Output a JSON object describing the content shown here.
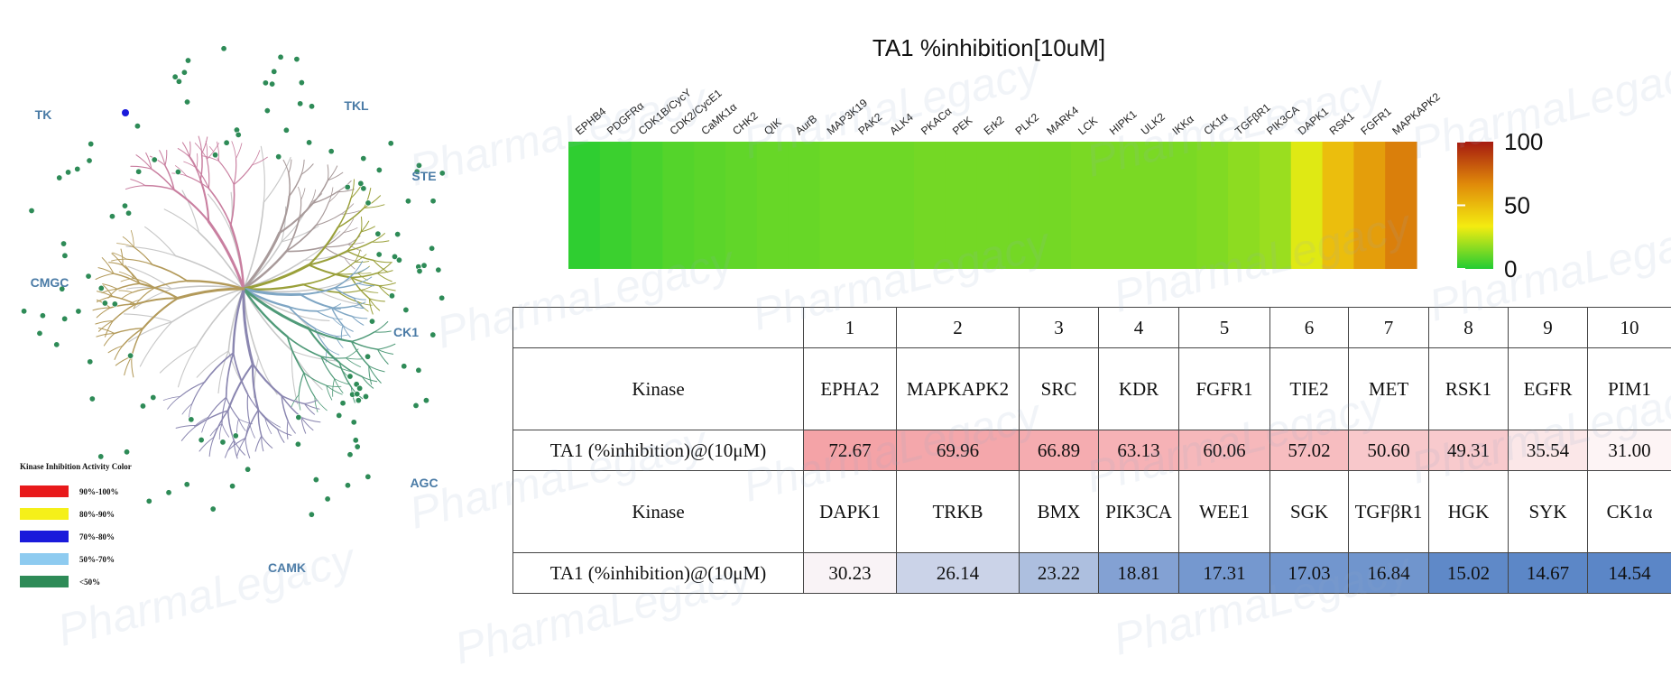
{
  "title": "TA1 %inhibition[10uM]",
  "watermark_text": "PharmaLegacy",
  "tree": {
    "groups": [
      "TK",
      "TKL",
      "STE",
      "CK1",
      "AGC",
      "CAMK",
      "CMGC"
    ],
    "legend_title": "Kinase Inhibition Activity Color",
    "legend": [
      {
        "label": "90%-100%",
        "color": "#e8191b"
      },
      {
        "label": "80%-90%",
        "color": "#f5f019"
      },
      {
        "label": "70%-80%",
        "color": "#1a1adb"
      },
      {
        "label": "50%-70%",
        "color": "#8ecbf0"
      },
      {
        "label": "<50%",
        "color": "#2e8b57"
      }
    ],
    "branch_colors": {
      "TK": "#c97fa0",
      "TKL": "#a89a9a",
      "STE": "#9aa03a",
      "CK1": "#7fa6c4",
      "AGC": "#4f9a78",
      "CAMK": "#8a86b0",
      "CMGC": "#b39a5a",
      "core": "#c8c8c8"
    }
  },
  "chart_data": {
    "type": "heatmap",
    "title": "TA1 %inhibition[10uM]",
    "x_labels": [
      "EPHB4",
      "PDGFRα",
      "CDK1B/CycY",
      "CDK2/CycE1",
      "CaMK1α",
      "CHK2",
      "QIK",
      "AurB",
      "MAP3K19",
      "PAK2",
      "ALK4",
      "PKACα",
      "PEK",
      "Erk2",
      "PLK2",
      "MARK4",
      "LCK",
      "HIPK1",
      "ULK2",
      "IKKα",
      "CK1α",
      "TGFβR1",
      "PIK3CA",
      "DAPK1",
      "RSK1",
      "FGFR1",
      "MAPKAPK2"
    ],
    "values": [
      2,
      4,
      6,
      8,
      9,
      10,
      11,
      11,
      12,
      12,
      12,
      13,
      13,
      13,
      13,
      13,
      14,
      14,
      14,
      14,
      15,
      17,
      19,
      30,
      49,
      60,
      70
    ],
    "colorbar": {
      "min": 0,
      "max": 100,
      "ticks": [
        0,
        50,
        100
      ],
      "colors": [
        "#22cc33",
        "#f4ec10",
        "#e08a0a",
        "#a51a10"
      ]
    }
  },
  "table": {
    "indices": [
      "1",
      "2",
      "3",
      "4",
      "5",
      "6",
      "7",
      "8",
      "9",
      "10"
    ],
    "rows": [
      {
        "header": "Kinase",
        "kind": "kinase",
        "cells": [
          "EPHA2",
          "MAPKAPK2",
          "SRC",
          "KDR",
          "FGFR1",
          "TIE2",
          "MET",
          "RSK1",
          "EGFR",
          "PIM1"
        ]
      },
      {
        "header": "TA1 (%inhibition)@(10μM)",
        "kind": "value",
        "cells": [
          "72.67",
          "69.96",
          "66.89",
          "63.13",
          "60.06",
          "57.02",
          "50.60",
          "49.31",
          "35.54",
          "31.00"
        ]
      },
      {
        "header": "Kinase",
        "kind": "kinase",
        "cells": [
          "DAPK1",
          "TRKB",
          "BMX",
          "PIK3CA",
          "WEE1",
          "SGK",
          "TGFβR1",
          "HGK",
          "SYK",
          "CK1α"
        ]
      },
      {
        "header": "TA1 (%inhibition)@(10μM)",
        "kind": "value",
        "cells": [
          "30.23",
          "26.14",
          "23.22",
          "18.81",
          "17.31",
          "17.03",
          "16.84",
          "15.02",
          "14.67",
          "14.54"
        ]
      }
    ],
    "scale": {
      "high_color": "#f4a3a7",
      "mid_color": "#fdf6f7",
      "low_color": "#5b86c7",
      "center": 30.5
    }
  }
}
